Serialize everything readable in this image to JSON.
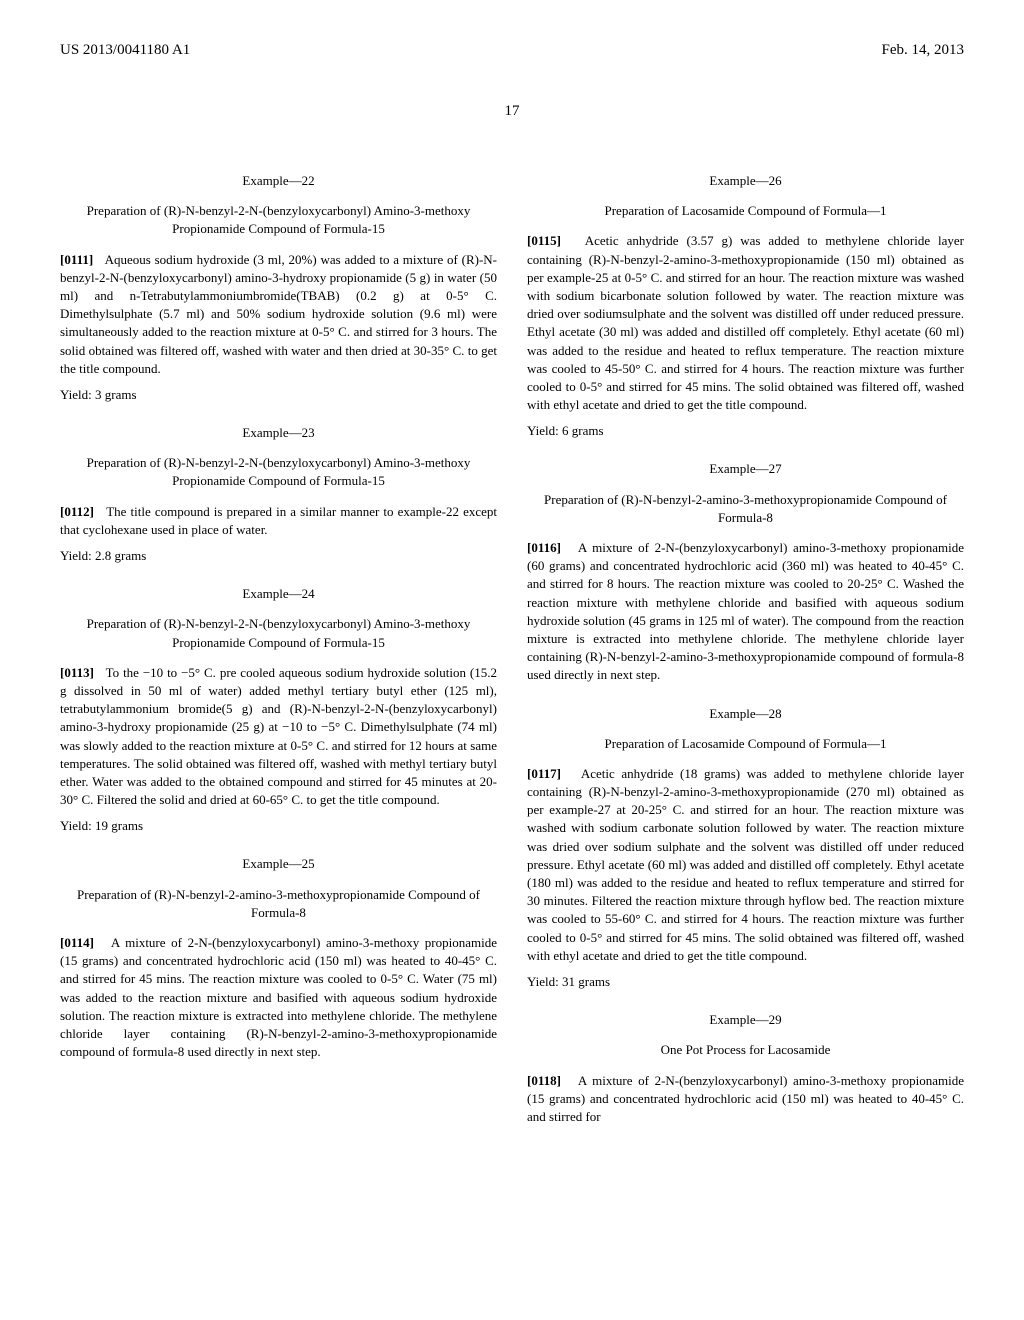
{
  "header": {
    "patent_id": "US 2013/0041180 A1",
    "date": "Feb. 14, 2013"
  },
  "page_num": "17",
  "left_col": {
    "ex22": {
      "title": "Example—22",
      "subtitle": "Preparation of (R)-N-benzyl-2-N-(benzyloxycarbonyl) Amino-3-methoxy Propionamide Compound of Formula-15",
      "para_num": "[0111]",
      "text": "Aqueous sodium hydroxide (3 ml, 20%) was added to a mixture of (R)-N-benzyl-2-N-(benzyloxycarbonyl) amino-3-hydroxy propionamide (5 g) in water (50 ml) and n-Tetrabutylammoniumbromide(TBAB) (0.2 g) at 0-5° C. Dimethylsulphate (5.7 ml) and 50% sodium hydroxide solution (9.6 ml) were simultaneously added to the reaction mixture at 0-5° C. and stirred for 3 hours. The solid obtained was filtered off, washed with water and then dried at 30-35° C. to get the title compound.",
      "yield": "Yield: 3 grams"
    },
    "ex23": {
      "title": "Example—23",
      "subtitle": "Preparation of (R)-N-benzyl-2-N-(benzyloxycarbonyl) Amino-3-methoxy Propionamide Compound of Formula-15",
      "para_num": "[0112]",
      "text": "The title compound is prepared in a similar manner to example-22 except that cyclohexane used in place of water.",
      "yield": "Yield: 2.8 grams"
    },
    "ex24": {
      "title": "Example—24",
      "subtitle": "Preparation of (R)-N-benzyl-2-N-(benzyloxycarbonyl) Amino-3-methoxy Propionamide Compound of Formula-15",
      "para_num": "[0113]",
      "text": "To the −10 to −5° C. pre cooled aqueous sodium hydroxide solution (15.2 g dissolved in 50 ml of water) added methyl tertiary butyl ether (125 ml), tetrabutylammonium bromide(5 g) and (R)-N-benzyl-2-N-(benzyloxycarbonyl) amino-3-hydroxy propionamide (25 g) at −10 to −5° C. Dimethylsulphate (74 ml) was slowly added to the reaction mixture at 0-5° C. and stirred for 12 hours at same temperatures. The solid obtained was filtered off, washed with methyl tertiary butyl ether. Water was added to the obtained compound and stirred for 45 minutes at 20-30° C. Filtered the solid and dried at 60-65° C. to get the title compound.",
      "yield": "Yield: 19 grams"
    },
    "ex25": {
      "title": "Example—25",
      "subtitle": "Preparation of (R)-N-benzyl-2-amino-3-methoxypropionamide Compound of Formula-8",
      "para_num": "[0114]",
      "text": "A mixture of 2-N-(benzyloxycarbonyl) amino-3-methoxy propionamide (15 grams) and concentrated hydrochloric acid (150 ml) was heated to 40-45° C. and stirred for 45 mins. The reaction mixture was cooled to 0-5° C. Water (75 ml) was added to the reaction mixture and basified with aqueous sodium hydroxide solution. The reaction mixture is extracted into methylene chloride. The methylene chloride layer containing (R)-N-benzyl-2-amino-3-methoxypropionamide compound of formula-8 used directly in next step."
    }
  },
  "right_col": {
    "ex26": {
      "title": "Example—26",
      "subtitle": "Preparation of Lacosamide Compound of Formula—1",
      "para_num": "[0115]",
      "text": "Acetic anhydride (3.57 g) was added to methylene chloride layer containing (R)-N-benzyl-2-amino-3-methoxypropionamide (150 ml) obtained as per example-25 at 0-5° C. and stirred for an hour. The reaction mixture was washed with sodium bicarbonate solution followed by water. The reaction mixture was dried over sodiumsulphate and the solvent was distilled off under reduced pressure. Ethyl acetate (30 ml) was added and distilled off completely. Ethyl acetate (60 ml) was added to the residue and heated to reflux temperature. The reaction mixture was cooled to 45-50° C. and stirred for 4 hours. The reaction mixture was further cooled to 0-5° and stirred for 45 mins. The solid obtained was filtered off, washed with ethyl acetate and dried to get the title compound.",
      "yield": "Yield: 6 grams"
    },
    "ex27": {
      "title": "Example—27",
      "subtitle": "Preparation of (R)-N-benzyl-2-amino-3-methoxypropionamide Compound of Formula-8",
      "para_num": "[0116]",
      "text": "A mixture of 2-N-(benzyloxycarbonyl) amino-3-methoxy propionamide (60 grams) and concentrated hydrochloric acid (360 ml) was heated to 40-45° C. and stirred for 8 hours. The reaction mixture was cooled to 20-25° C. Washed the reaction mixture with methylene chloride and basified with aqueous sodium hydroxide solution (45 grams in 125 ml of water). The compound from the reaction mixture is extracted into methylene chloride. The methylene chloride layer containing (R)-N-benzyl-2-amino-3-methoxypropionamide compound of formula-8 used directly in next step."
    },
    "ex28": {
      "title": "Example—28",
      "subtitle": "Preparation of Lacosamide Compound of Formula—1",
      "para_num": "[0117]",
      "text": "Acetic anhydride (18 grams) was added to methylene chloride layer containing (R)-N-benzyl-2-amino-3-methoxypropionamide (270 ml) obtained as per example-27 at 20-25° C. and stirred for an hour. The reaction mixture was washed with sodium carbonate solution followed by water. The reaction mixture was dried over sodium sulphate and the solvent was distilled off under reduced pressure. Ethyl acetate (60 ml) was added and distilled off completely. Ethyl acetate (180 ml) was added to the residue and heated to reflux temperature and stirred for 30 minutes. Filtered the reaction mixture through hyflow bed. The reaction mixture was cooled to 55-60° C. and stirred for 4 hours. The reaction mixture was further cooled to 0-5° and stirred for 45 mins. The solid obtained was filtered off, washed with ethyl acetate and dried to get the title compound.",
      "yield": "Yield: 31 grams"
    },
    "ex29": {
      "title": "Example—29",
      "subtitle": "One Pot Process for Lacosamide",
      "para_num": "[0118]",
      "text": "A mixture of 2-N-(benzyloxycarbonyl) amino-3-methoxy propionamide (15 grams) and concentrated hydrochloric acid (150 ml) was heated to 40-45° C. and stirred for"
    }
  }
}
